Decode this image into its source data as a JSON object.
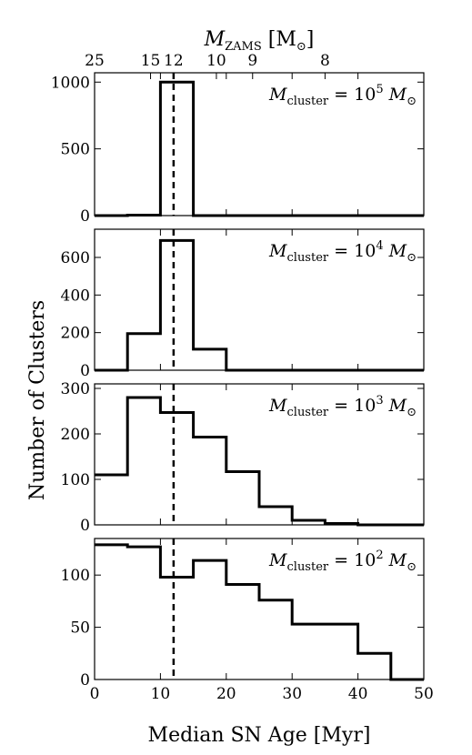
{
  "chart_data": {
    "type": "histogram",
    "xlabel": "Median SN Age [Myr]",
    "ylabel": "Number of Clusters",
    "xlim": [
      0,
      50
    ],
    "xticks": [
      0,
      10,
      20,
      30,
      40,
      50
    ],
    "bin_edges": [
      0,
      5,
      10,
      15,
      20,
      25,
      30,
      35,
      40,
      45,
      50
    ],
    "reference_line_x": 12,
    "top_axis": {
      "label_symbol": "M",
      "label_subscript": "ZAMS",
      "label_unit_open": "[M",
      "label_unit_subscript": "⊙",
      "label_unit_close": "]",
      "tick_labels": [
        "25",
        "15",
        "12",
        "10",
        "9",
        "8"
      ],
      "tick_positions_myr": [
        0,
        8.5,
        12,
        18.5,
        24,
        35
      ]
    },
    "panels": [
      {
        "annotation": {
          "lhs": "M",
          "lhs_sub": "cluster",
          "eq": " = 10",
          "exp": "5",
          "rhs": " M",
          "rhs_sub": "⊙"
        },
        "ylim": [
          0,
          1070
        ],
        "yticks": [
          0,
          500,
          1000
        ],
        "counts": [
          0,
          3,
          1000,
          0,
          0,
          0,
          0,
          0,
          0,
          0
        ]
      },
      {
        "annotation": {
          "lhs": "M",
          "lhs_sub": "cluster",
          "eq": " = 10",
          "exp": "4",
          "rhs": " M",
          "rhs_sub": "⊙"
        },
        "ylim": [
          0,
          750
        ],
        "yticks": [
          0,
          200,
          400,
          600
        ],
        "counts": [
          0,
          195,
          690,
          112,
          0,
          0,
          0,
          0,
          0,
          0
        ]
      },
      {
        "annotation": {
          "lhs": "M",
          "lhs_sub": "cluster",
          "eq": " = 10",
          "exp": "3",
          "rhs": " M",
          "rhs_sub": "⊙"
        },
        "ylim": [
          0,
          310
        ],
        "yticks": [
          0,
          100,
          200,
          300
        ],
        "counts": [
          110,
          280,
          247,
          193,
          117,
          40,
          10,
          3,
          0,
          0
        ]
      },
      {
        "annotation": {
          "lhs": "M",
          "lhs_sub": "cluster",
          "eq": " = 10",
          "exp": "2",
          "rhs": " M",
          "rhs_sub": "⊙"
        },
        "ylim": [
          0,
          135
        ],
        "yticks": [
          0,
          50,
          100
        ],
        "counts": [
          129,
          127,
          98,
          114,
          91,
          76,
          53,
          53,
          25,
          0
        ]
      }
    ]
  }
}
